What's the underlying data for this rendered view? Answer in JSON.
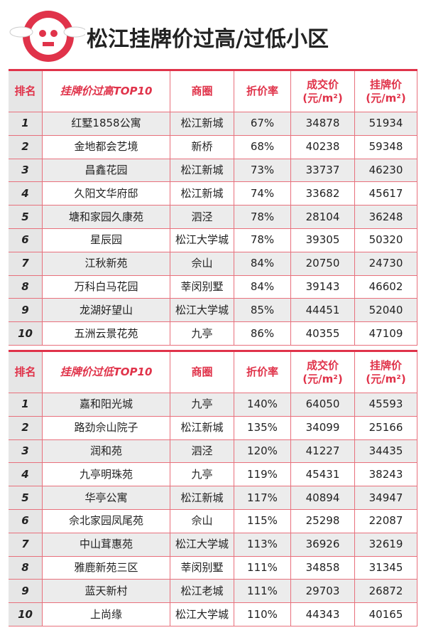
{
  "header": {
    "title": "松江挂牌价过高/过低小区"
  },
  "tables": [
    {
      "header": [
        [
          "排名"
        ],
        [
          "挂牌价过高TOP10"
        ],
        [
          "商圈"
        ],
        [
          "折价率"
        ],
        [
          "成交价",
          "(元/m²)"
        ],
        [
          "挂牌价",
          "(元/m²)"
        ]
      ],
      "rows": [
        [
          "1",
          "红墅1858公寓",
          "松江新城",
          "67%",
          "34878",
          "51934"
        ],
        [
          "2",
          "金地都会艺境",
          "新桥",
          "68%",
          "40238",
          "59348"
        ],
        [
          "3",
          "昌鑫花园",
          "松江新城",
          "73%",
          "33737",
          "46230"
        ],
        [
          "4",
          "久阳文华府邸",
          "松江新城",
          "74%",
          "33682",
          "45617"
        ],
        [
          "5",
          "塘和家园久康苑",
          "泗泾",
          "78%",
          "28104",
          "36248"
        ],
        [
          "6",
          "星辰园",
          "松江大学城",
          "78%",
          "39305",
          "50320"
        ],
        [
          "7",
          "江秋新苑",
          "佘山",
          "84%",
          "20750",
          "24730"
        ],
        [
          "8",
          "万科白马花园",
          "莘闵别墅",
          "84%",
          "39143",
          "46602"
        ],
        [
          "9",
          "龙湖好望山",
          "松江大学城",
          "85%",
          "44451",
          "52040"
        ],
        [
          "10",
          "五洲云景花苑",
          "九亭",
          "86%",
          "40355",
          "47109"
        ]
      ]
    },
    {
      "header": [
        [
          "排名"
        ],
        [
          "挂牌价过低TOP10"
        ],
        [
          "商圈"
        ],
        [
          "折价率"
        ],
        [
          "成交价",
          "(元/m²)"
        ],
        [
          "挂牌价",
          "(元/m²)"
        ]
      ],
      "rows": [
        [
          "1",
          "嘉和阳光城",
          "九亭",
          "140%",
          "64050",
          "45593"
        ],
        [
          "2",
          "路劲佘山院子",
          "松江新城",
          "135%",
          "34099",
          "25166"
        ],
        [
          "3",
          "润和苑",
          "泗泾",
          "120%",
          "41227",
          "34435"
        ],
        [
          "4",
          "九亭明珠苑",
          "九亭",
          "119%",
          "45431",
          "38243"
        ],
        [
          "5",
          "华亭公寓",
          "松江新城",
          "117%",
          "40894",
          "34947"
        ],
        [
          "6",
          "佘北家园凤尾苑",
          "佘山",
          "115%",
          "25298",
          "22087"
        ],
        [
          "7",
          "中山茸惠苑",
          "松江大学城",
          "113%",
          "36926",
          "32619"
        ],
        [
          "8",
          "雅鹿新苑三区",
          "莘闵别墅",
          "111%",
          "34858",
          "31345"
        ],
        [
          "9",
          "蓝天新村",
          "松江老城",
          "111%",
          "29703",
          "26872"
        ],
        [
          "10",
          "上尚缘",
          "松江大学城",
          "110%",
          "44343",
          "40165"
        ]
      ]
    }
  ]
}
